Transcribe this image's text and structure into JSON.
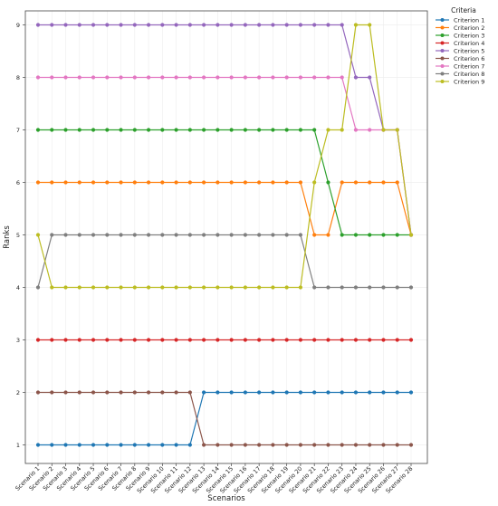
{
  "chart_data": {
    "type": "line",
    "title": "",
    "xlabel": "Scenarios",
    "ylabel": "Ranks",
    "ylim": [
      1,
      9
    ],
    "yticks": [
      1,
      2,
      3,
      4,
      5,
      6,
      7,
      8,
      9
    ],
    "grid": true,
    "legend": {
      "title": "Criteria",
      "placement": "outside-top-right"
    },
    "categories": [
      "Scenario 1",
      "Scenario 2",
      "Scenario 3",
      "Scenario 4",
      "Scenario 5",
      "Scenario 6",
      "Scenario 7",
      "Scenario 8",
      "Scenario 9",
      "Scenario 10",
      "Scenario 11",
      "Scenario 12",
      "Scenario 13",
      "Scenario 14",
      "Scenario 15",
      "Scenario 16",
      "Scenario 17",
      "Scenario 18",
      "Scenario 19",
      "Scenario 20",
      "Scenario 21",
      "Scenario 22",
      "Scenario 23",
      "Scenario 24",
      "Scenario 25",
      "Scenario 26",
      "Scenario 27",
      "Scenario 28"
    ],
    "series": [
      {
        "name": "Criterion 1",
        "color": "#1f77b4",
        "values": [
          1,
          1,
          1,
          1,
          1,
          1,
          1,
          1,
          1,
          1,
          1,
          1,
          2,
          2,
          2,
          2,
          2,
          2,
          2,
          2,
          2,
          2,
          2,
          2,
          2,
          2,
          2,
          2
        ]
      },
      {
        "name": "Criterion 2",
        "color": "#ff7f0e",
        "values": [
          6,
          6,
          6,
          6,
          6,
          6,
          6,
          6,
          6,
          6,
          6,
          6,
          6,
          6,
          6,
          6,
          6,
          6,
          6,
          6,
          5,
          5,
          6,
          6,
          6,
          6,
          6,
          5
        ]
      },
      {
        "name": "Criterion 3",
        "color": "#2ca02c",
        "values": [
          7,
          7,
          7,
          7,
          7,
          7,
          7,
          7,
          7,
          7,
          7,
          7,
          7,
          7,
          7,
          7,
          7,
          7,
          7,
          7,
          7,
          6,
          5,
          5,
          5,
          5,
          5,
          5
        ]
      },
      {
        "name": "Criterion 4",
        "color": "#d62728",
        "values": [
          3,
          3,
          3,
          3,
          3,
          3,
          3,
          3,
          3,
          3,
          3,
          3,
          3,
          3,
          3,
          3,
          3,
          3,
          3,
          3,
          3,
          3,
          3,
          3,
          3,
          3,
          3,
          3
        ]
      },
      {
        "name": "Criterion 5",
        "color": "#9467bd",
        "values": [
          9,
          9,
          9,
          9,
          9,
          9,
          9,
          9,
          9,
          9,
          9,
          9,
          9,
          9,
          9,
          9,
          9,
          9,
          9,
          9,
          9,
          9,
          9,
          8,
          8,
          7,
          7,
          5
        ]
      },
      {
        "name": "Criterion 6",
        "color": "#8c564b",
        "values": [
          2,
          2,
          2,
          2,
          2,
          2,
          2,
          2,
          2,
          2,
          2,
          2,
          1,
          1,
          1,
          1,
          1,
          1,
          1,
          1,
          1,
          1,
          1,
          1,
          1,
          1,
          1,
          1
        ]
      },
      {
        "name": "Criterion 7",
        "color": "#e377c2",
        "values": [
          8,
          8,
          8,
          8,
          8,
          8,
          8,
          8,
          8,
          8,
          8,
          8,
          8,
          8,
          8,
          8,
          8,
          8,
          8,
          8,
          8,
          8,
          8,
          7,
          7,
          7,
          7,
          5
        ]
      },
      {
        "name": "Criterion 8",
        "color": "#7f7f7f",
        "values": [
          4,
          5,
          5,
          5,
          5,
          5,
          5,
          5,
          5,
          5,
          5,
          5,
          5,
          5,
          5,
          5,
          5,
          5,
          5,
          5,
          4,
          4,
          4,
          4,
          4,
          4,
          4,
          4
        ]
      },
      {
        "name": "Criterion 9",
        "color": "#bcbd22",
        "values": [
          5,
          4,
          4,
          4,
          4,
          4,
          4,
          4,
          4,
          4,
          4,
          4,
          4,
          4,
          4,
          4,
          4,
          4,
          4,
          4,
          6,
          7,
          7,
          9,
          9,
          7,
          7,
          5
        ]
      }
    ]
  }
}
